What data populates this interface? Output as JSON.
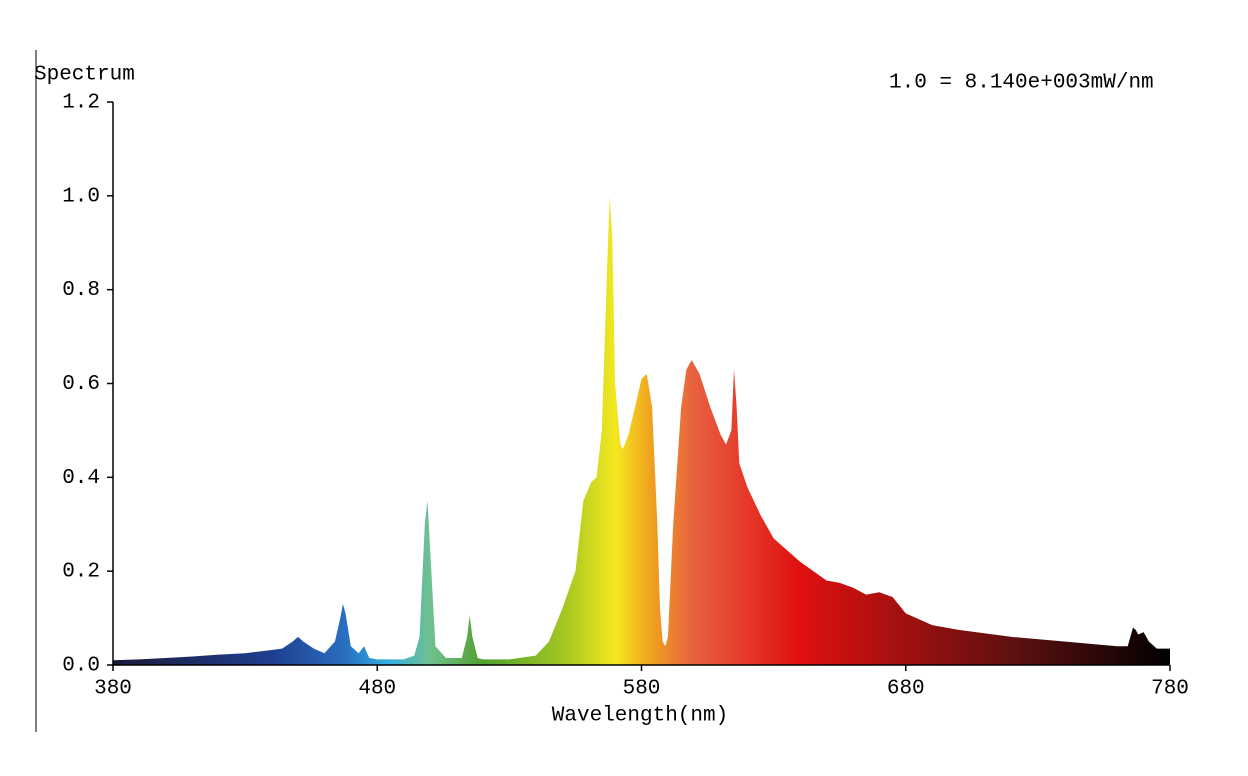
{
  "chart_data": {
    "type": "area",
    "ylabel": "Spectrum",
    "annotation": "1.0 = 8.140e+003mW/nm",
    "xlabel": "Wavelength(nm)",
    "xlim": [
      380,
      780
    ],
    "xticks": [
      380,
      480,
      580,
      680,
      780
    ],
    "ylim": [
      0,
      1.2
    ],
    "yticks": [
      {
        "value": 0,
        "label": "0.0"
      },
      0.2,
      0.4,
      0.6,
      0.8,
      {
        "value": 1,
        "label": "1.0"
      },
      1.2
    ],
    "x": [
      380,
      390,
      400,
      410,
      420,
      430,
      440,
      444,
      448,
      450,
      452,
      456,
      460,
      464,
      466,
      467,
      468,
      470,
      473,
      475,
      477,
      480,
      490,
      494,
      496,
      498,
      499,
      500,
      502,
      506,
      512,
      514,
      515,
      516,
      518,
      520,
      530,
      540,
      545,
      550,
      555,
      558,
      561,
      563,
      565,
      567,
      568,
      569,
      570,
      572,
      573,
      575,
      578,
      580,
      582,
      584,
      586,
      587,
      588,
      589,
      590,
      592,
      595,
      597,
      599,
      602,
      606,
      610,
      612,
      614,
      615,
      616,
      617,
      620,
      625,
      630,
      640,
      650,
      655,
      660,
      665,
      670,
      675,
      680,
      690,
      700,
      720,
      740,
      750,
      760,
      764,
      766,
      767,
      768,
      770,
      772,
      775,
      780
    ],
    "values": [
      0.01,
      0.012,
      0.015,
      0.018,
      0.022,
      0.025,
      0.032,
      0.035,
      0.05,
      0.06,
      0.05,
      0.035,
      0.025,
      0.05,
      0.1,
      0.13,
      0.11,
      0.04,
      0.025,
      0.04,
      0.015,
      0.012,
      0.012,
      0.02,
      0.06,
      0.3,
      0.35,
      0.25,
      0.04,
      0.015,
      0.015,
      0.06,
      0.105,
      0.06,
      0.015,
      0.012,
      0.012,
      0.02,
      0.05,
      0.12,
      0.2,
      0.35,
      0.39,
      0.4,
      0.5,
      0.85,
      1.0,
      0.9,
      0.6,
      0.47,
      0.46,
      0.49,
      0.56,
      0.61,
      0.62,
      0.55,
      0.3,
      0.12,
      0.05,
      0.04,
      0.06,
      0.3,
      0.55,
      0.63,
      0.65,
      0.62,
      0.55,
      0.49,
      0.47,
      0.5,
      0.63,
      0.55,
      0.43,
      0.38,
      0.32,
      0.27,
      0.22,
      0.18,
      0.175,
      0.165,
      0.15,
      0.155,
      0.145,
      0.11,
      0.085,
      0.075,
      0.06,
      0.05,
      0.045,
      0.04,
      0.04,
      0.08,
      0.075,
      0.065,
      0.07,
      0.05,
      0.035,
      0.035
    ]
  }
}
